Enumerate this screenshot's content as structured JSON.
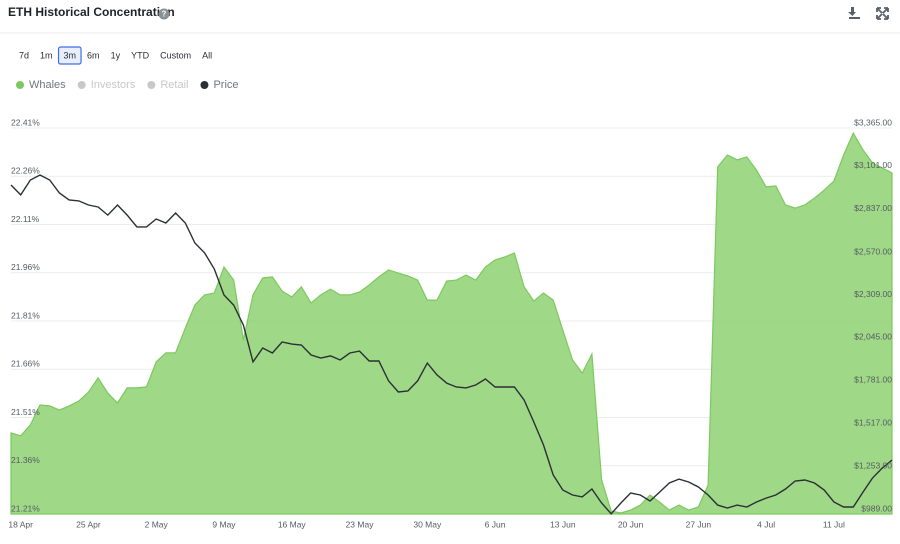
{
  "title": "ETH Historical Concentration",
  "range_buttons": [
    "7d",
    "1m",
    "3m",
    "6m",
    "1y",
    "YTD",
    "Custom",
    "All"
  ],
  "selected_range_index": 2,
  "watermark": "intotheblock",
  "chart_data": {
    "type": "area",
    "categories": [
      null,
      "18 Apr",
      null,
      null,
      null,
      null,
      null,
      null,
      "25 Apr",
      null,
      null,
      null,
      null,
      null,
      null,
      "2 May",
      null,
      null,
      null,
      null,
      null,
      null,
      "9 May",
      null,
      null,
      null,
      null,
      null,
      null,
      "16 May",
      null,
      null,
      null,
      null,
      null,
      null,
      "23 May",
      null,
      null,
      null,
      null,
      null,
      null,
      "30 May",
      null,
      null,
      null,
      null,
      null,
      null,
      "6 Jun",
      null,
      null,
      null,
      null,
      null,
      null,
      "13 Jun",
      null,
      null,
      null,
      null,
      null,
      null,
      "20 Jun",
      null,
      null,
      null,
      null,
      null,
      null,
      "27 Jun",
      null,
      null,
      null,
      null,
      null,
      null,
      "4 Jul",
      null,
      null,
      null,
      null,
      null,
      null,
      "11 Jul",
      null,
      null,
      null,
      null,
      null,
      null
    ],
    "series": [
      {
        "name": "Whales",
        "color": "#7cc95f",
        "values": [
          21.462,
          21.453,
          21.487,
          21.549,
          21.546,
          21.533,
          21.546,
          21.561,
          21.589,
          21.633,
          21.586,
          21.555,
          21.602,
          21.602,
          21.605,
          21.683,
          21.711,
          21.711,
          21.788,
          21.86,
          21.891,
          21.897,
          21.978,
          21.937,
          21.751,
          21.891,
          21.944,
          21.947,
          21.903,
          21.885,
          21.916,
          21.866,
          21.891,
          21.909,
          21.891,
          21.891,
          21.9,
          21.922,
          21.947,
          21.969,
          21.959,
          21.95,
          21.937,
          21.875,
          21.875,
          21.934,
          21.937,
          21.953,
          21.937,
          21.978,
          22.0,
          22.009,
          22.021,
          21.916,
          21.872,
          21.897,
          21.875,
          21.782,
          21.689,
          21.648,
          21.707,
          21.316,
          21.219,
          21.213,
          21.222,
          21.238,
          21.269,
          21.247,
          21.222,
          21.238,
          21.222,
          21.232,
          21.3,
          22.289,
          22.326,
          22.311,
          22.32,
          22.279,
          22.227,
          22.23,
          22.171,
          22.161,
          22.171,
          22.192,
          22.217,
          22.245,
          22.326,
          22.394,
          22.342,
          22.301,
          22.286,
          22.27
        ]
      },
      {
        "name": "Price",
        "color": "#2b2f36",
        "axis": "y2",
        "values": [
          3014,
          2953,
          3045,
          3076,
          3045,
          2965,
          2922,
          2916,
          2891,
          2879,
          2829,
          2891,
          2829,
          2756,
          2756,
          2805,
          2780,
          2842,
          2780,
          2657,
          2596,
          2497,
          2337,
          2275,
          2152,
          1925,
          2011,
          1980,
          2048,
          2035,
          2029,
          1968,
          1949,
          1962,
          1937,
          1980,
          1992,
          1931,
          1931,
          1808,
          1740,
          1746,
          1808,
          1918,
          1845,
          1795,
          1771,
          1765,
          1783,
          1820,
          1771,
          1771,
          1771,
          1691,
          1555,
          1414,
          1229,
          1137,
          1106,
          1094,
          1143,
          1057,
          990,
          1057,
          1118,
          1106,
          1069,
          1124,
          1180,
          1204,
          1186,
          1155,
          1106,
          1044,
          1026,
          1044,
          1032,
          1063,
          1087,
          1106,
          1143,
          1192,
          1198,
          1180,
          1137,
          1063,
          1032,
          1032,
          1124,
          1211,
          1272,
          1321
        ]
      }
    ],
    "hidden_series": [
      {
        "name": "Investors",
        "color": "#c8c8c8"
      },
      {
        "name": "Retail",
        "color": "#c8c8c8"
      }
    ],
    "ylim": [
      21.21,
      22.41
    ],
    "yticks": [
      {
        "value": 22.41,
        "label": "22.41%"
      },
      {
        "value": 22.26,
        "label": "22.26%"
      },
      {
        "value": 22.11,
        "label": "22.11%"
      },
      {
        "value": 21.96,
        "label": "21.96%"
      },
      {
        "value": 21.81,
        "label": "21.81%"
      },
      {
        "value": 21.66,
        "label": "21.66%"
      },
      {
        "value": 21.51,
        "label": "21.51%"
      },
      {
        "value": 21.36,
        "label": "21.36%"
      },
      {
        "value": 21.21,
        "label": "21.21%"
      }
    ],
    "y2lim": [
      989,
      3365
    ],
    "y2ticks": [
      {
        "value": 3365,
        "label": "$3,365.00"
      },
      {
        "value": 3101,
        "label": "$3,101.00"
      },
      {
        "value": 2837,
        "label": "$2,837.00"
      },
      {
        "value": 2570,
        "label": "$2,570.00"
      },
      {
        "value": 2309,
        "label": "$2,309.00"
      },
      {
        "value": 2045,
        "label": "$2,045.00"
      },
      {
        "value": 1781,
        "label": "$1,781.00"
      },
      {
        "value": 1517,
        "label": "$1,517.00"
      },
      {
        "value": 1253,
        "label": "$1,253.00"
      },
      {
        "value": 989,
        "label": "$989.00"
      }
    ],
    "grid": true
  }
}
